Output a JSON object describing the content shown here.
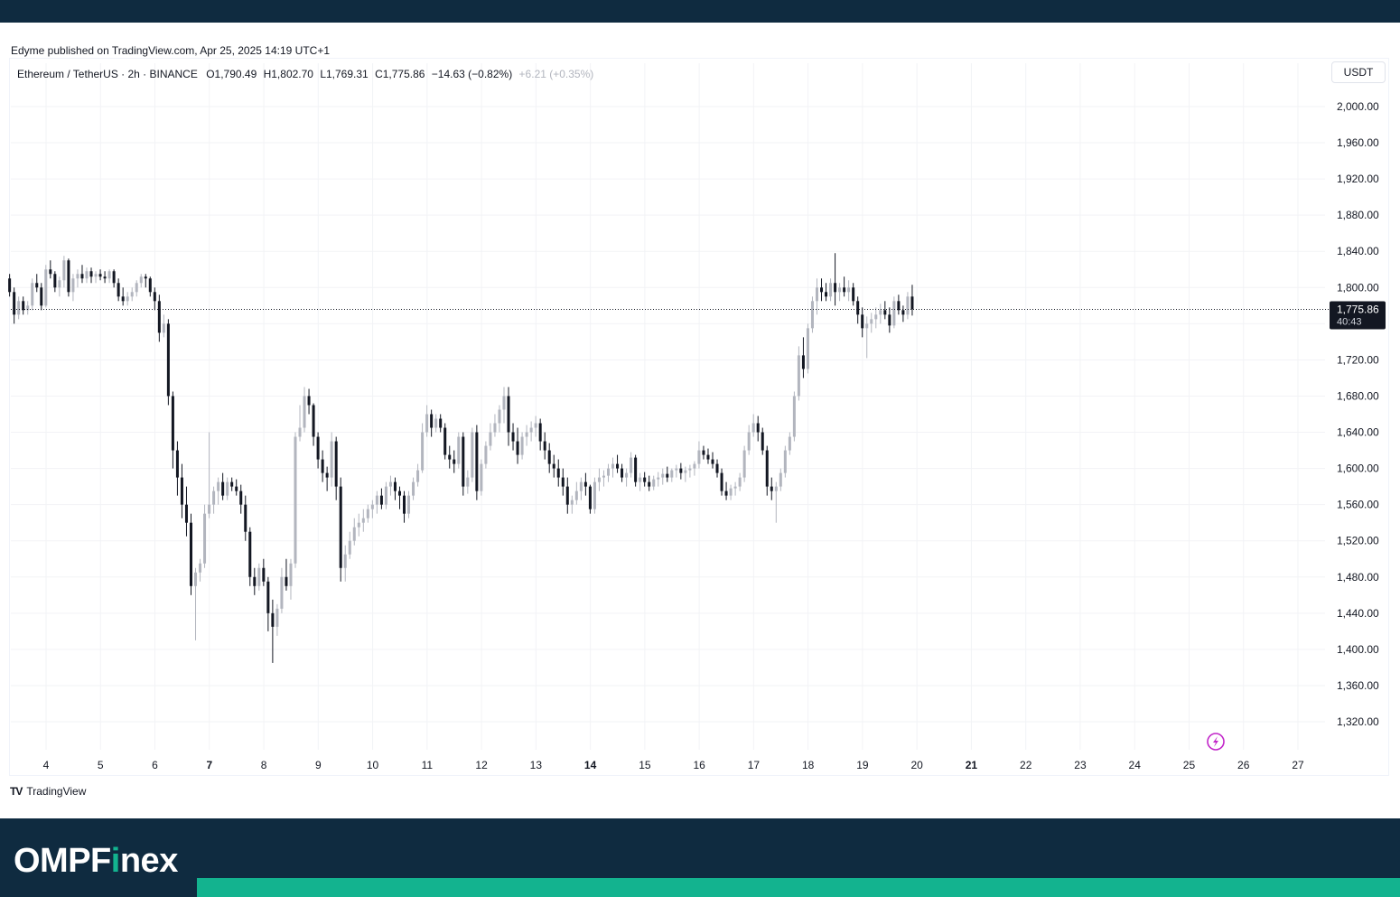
{
  "header": {
    "published": "Edyme published on TradingView.com, Apr 25, 2025 14:19 UTC+1"
  },
  "legend": {
    "symbol": "Ethereum / TetherUS · 2h · BINANCE",
    "open": "O1,790.49",
    "high": "H1,802.70",
    "low": "L1,769.31",
    "close": "C1,775.86",
    "change": "−14.63 (−0.82%)",
    "extra": "+6.21 (+0.35%)"
  },
  "currency": "USDT",
  "price_tag": {
    "price": "1,775.86",
    "countdown": "40:43"
  },
  "footer": {
    "tv_brand": "TradingView",
    "brand_main": "OMPF",
    "brand_dot": "i",
    "brand_end": "nex"
  },
  "colors": {
    "up": "#b2b5be",
    "down": "#131722",
    "grid": "#f2f3f6",
    "footer_bg": "#0f2b40",
    "accent": "#13b38f",
    "flash_icon": "#c226c9"
  },
  "icons": [
    "flash-icon",
    "tradingview-logo-icon"
  ],
  "chart_data": {
    "type": "candlestick",
    "interval": "2h",
    "ylim": [
      1300,
      2030
    ],
    "y_ticks": [
      2000,
      1960,
      1920,
      1880,
      1840,
      1800,
      1760,
      1720,
      1680,
      1640,
      1600,
      1560,
      1520,
      1480,
      1440,
      1400,
      1360,
      1320
    ],
    "y_tick_labels": [
      "2,000.00",
      "1,960.00",
      "1,920.00",
      "1,880.00",
      "1,840.00",
      "1,800.00",
      "",
      "1,720.00",
      "1,680.00",
      "1,640.00",
      "1,600.00",
      "1,560.00",
      "1,520.00",
      "1,480.00",
      "1,440.00",
      "1,400.00",
      "1,360.00",
      "1,320.00"
    ],
    "x_day_start": 3,
    "x_day_end": 28,
    "x_ticks": [
      {
        "day": 4,
        "label": "4",
        "bold": false
      },
      {
        "day": 5,
        "label": "5",
        "bold": false
      },
      {
        "day": 6,
        "label": "6",
        "bold": false
      },
      {
        "day": 7,
        "label": "7",
        "bold": true
      },
      {
        "day": 8,
        "label": "8",
        "bold": false
      },
      {
        "day": 9,
        "label": "9",
        "bold": false
      },
      {
        "day": 10,
        "label": "10",
        "bold": false
      },
      {
        "day": 11,
        "label": "11",
        "bold": false
      },
      {
        "day": 12,
        "label": "12",
        "bold": false
      },
      {
        "day": 13,
        "label": "13",
        "bold": false
      },
      {
        "day": 14,
        "label": "14",
        "bold": true
      },
      {
        "day": 15,
        "label": "15",
        "bold": false
      },
      {
        "day": 16,
        "label": "16",
        "bold": false
      },
      {
        "day": 17,
        "label": "17",
        "bold": false
      },
      {
        "day": 18,
        "label": "18",
        "bold": false
      },
      {
        "day": 19,
        "label": "19",
        "bold": false
      },
      {
        "day": 20,
        "label": "20",
        "bold": false
      },
      {
        "day": 21,
        "label": "21",
        "bold": true
      },
      {
        "day": 22,
        "label": "22",
        "bold": false
      },
      {
        "day": 23,
        "label": "23",
        "bold": false
      },
      {
        "day": 24,
        "label": "24",
        "bold": false
      },
      {
        "day": 25,
        "label": "25",
        "bold": false
      },
      {
        "day": 26,
        "label": "26",
        "bold": false
      },
      {
        "day": 27,
        "label": "27",
        "bold": false
      }
    ],
    "current_price": 1775.86,
    "first_candle_day": 3.33,
    "candles_per_day": 12,
    "candles": [
      [
        1810,
        1815,
        1790,
        1795
      ],
      [
        1795,
        1800,
        1760,
        1770
      ],
      [
        1770,
        1790,
        1765,
        1785
      ],
      [
        1785,
        1790,
        1770,
        1775
      ],
      [
        1775,
        1785,
        1770,
        1780
      ],
      [
        1780,
        1810,
        1775,
        1805
      ],
      [
        1805,
        1815,
        1795,
        1800
      ],
      [
        1800,
        1805,
        1775,
        1780
      ],
      [
        1780,
        1825,
        1778,
        1820
      ],
      [
        1820,
        1830,
        1810,
        1815
      ],
      [
        1815,
        1818,
        1795,
        1800
      ],
      [
        1800,
        1812,
        1790,
        1808
      ],
      [
        1808,
        1835,
        1800,
        1830
      ],
      [
        1830,
        1832,
        1790,
        1795
      ],
      [
        1795,
        1815,
        1785,
        1810
      ],
      [
        1810,
        1820,
        1800,
        1815
      ],
      [
        1815,
        1825,
        1805,
        1810
      ],
      [
        1810,
        1822,
        1805,
        1818
      ],
      [
        1818,
        1822,
        1805,
        1812
      ],
      [
        1812,
        1818,
        1805,
        1815
      ],
      [
        1815,
        1820,
        1808,
        1812
      ],
      [
        1812,
        1818,
        1805,
        1810
      ],
      [
        1810,
        1820,
        1805,
        1818
      ],
      [
        1818,
        1820,
        1800,
        1805
      ],
      [
        1805,
        1810,
        1785,
        1790
      ],
      [
        1790,
        1800,
        1780,
        1785
      ],
      [
        1785,
        1795,
        1780,
        1790
      ],
      [
        1790,
        1800,
        1785,
        1795
      ],
      [
        1795,
        1808,
        1790,
        1805
      ],
      [
        1805,
        1815,
        1800,
        1812
      ],
      [
        1812,
        1815,
        1800,
        1810
      ],
      [
        1810,
        1812,
        1790,
        1795
      ],
      [
        1795,
        1800,
        1775,
        1785
      ],
      [
        1785,
        1792,
        1740,
        1750
      ],
      [
        1750,
        1770,
        1745,
        1760
      ],
      [
        1760,
        1765,
        1670,
        1680
      ],
      [
        1680,
        1685,
        1600,
        1620
      ],
      [
        1620,
        1630,
        1570,
        1590
      ],
      [
        1590,
        1605,
        1545,
        1560
      ],
      [
        1560,
        1580,
        1525,
        1540
      ],
      [
        1540,
        1550,
        1460,
        1470
      ],
      [
        1470,
        1490,
        1410,
        1485
      ],
      [
        1485,
        1500,
        1475,
        1495
      ],
      [
        1495,
        1560,
        1490,
        1550
      ],
      [
        1550,
        1640,
        1545,
        1560
      ],
      [
        1560,
        1580,
        1550,
        1575
      ],
      [
        1575,
        1590,
        1560,
        1585
      ],
      [
        1585,
        1595,
        1565,
        1570
      ],
      [
        1570,
        1590,
        1565,
        1585
      ],
      [
        1585,
        1590,
        1575,
        1580
      ],
      [
        1580,
        1588,
        1570,
        1575
      ],
      [
        1575,
        1582,
        1550,
        1560
      ],
      [
        1560,
        1570,
        1520,
        1530
      ],
      [
        1530,
        1535,
        1470,
        1480
      ],
      [
        1480,
        1490,
        1460,
        1470
      ],
      [
        1470,
        1495,
        1465,
        1490
      ],
      [
        1490,
        1500,
        1470,
        1475
      ],
      [
        1475,
        1480,
        1420,
        1440
      ],
      [
        1440,
        1455,
        1385,
        1425
      ],
      [
        1425,
        1450,
        1415,
        1445
      ],
      [
        1445,
        1490,
        1440,
        1480
      ],
      [
        1480,
        1500,
        1465,
        1470
      ],
      [
        1470,
        1500,
        1455,
        1495
      ],
      [
        1495,
        1640,
        1490,
        1635
      ],
      [
        1635,
        1670,
        1630,
        1645
      ],
      [
        1645,
        1690,
        1640,
        1680
      ],
      [
        1680,
        1688,
        1660,
        1670
      ],
      [
        1670,
        1672,
        1625,
        1635
      ],
      [
        1635,
        1640,
        1600,
        1610
      ],
      [
        1610,
        1620,
        1585,
        1595
      ],
      [
        1595,
        1602,
        1575,
        1590
      ],
      [
        1590,
        1640,
        1580,
        1630
      ],
      [
        1630,
        1635,
        1565,
        1580
      ],
      [
        1580,
        1590,
        1475,
        1490
      ],
      [
        1490,
        1515,
        1475,
        1505
      ],
      [
        1505,
        1530,
        1500,
        1520
      ],
      [
        1520,
        1545,
        1515,
        1535
      ],
      [
        1535,
        1550,
        1525,
        1540
      ],
      [
        1540,
        1555,
        1530,
        1545
      ],
      [
        1545,
        1560,
        1540,
        1555
      ],
      [
        1555,
        1565,
        1545,
        1560
      ],
      [
        1560,
        1575,
        1550,
        1570
      ],
      [
        1570,
        1578,
        1555,
        1560
      ],
      [
        1560,
        1585,
        1555,
        1580
      ],
      [
        1580,
        1592,
        1570,
        1585
      ],
      [
        1585,
        1590,
        1565,
        1575
      ],
      [
        1575,
        1580,
        1555,
        1570
      ],
      [
        1570,
        1575,
        1540,
        1550
      ],
      [
        1550,
        1575,
        1545,
        1570
      ],
      [
        1570,
        1590,
        1565,
        1585
      ],
      [
        1585,
        1605,
        1580,
        1598
      ],
      [
        1598,
        1650,
        1595,
        1640
      ],
      [
        1640,
        1670,
        1635,
        1660
      ],
      [
        1660,
        1665,
        1635,
        1645
      ],
      [
        1645,
        1660,
        1640,
        1655
      ],
      [
        1655,
        1660,
        1640,
        1645
      ],
      [
        1645,
        1650,
        1610,
        1615
      ],
      [
        1615,
        1625,
        1600,
        1610
      ],
      [
        1610,
        1620,
        1595,
        1605
      ],
      [
        1605,
        1640,
        1600,
        1635
      ],
      [
        1635,
        1640,
        1570,
        1580
      ],
      [
        1580,
        1598,
        1572,
        1590
      ],
      [
        1590,
        1645,
        1585,
        1640
      ],
      [
        1640,
        1648,
        1565,
        1575
      ],
      [
        1575,
        1610,
        1570,
        1605
      ],
      [
        1605,
        1630,
        1600,
        1625
      ],
      [
        1625,
        1650,
        1620,
        1640
      ],
      [
        1640,
        1660,
        1635,
        1650
      ],
      [
        1650,
        1670,
        1640,
        1665
      ],
      [
        1665,
        1690,
        1650,
        1680
      ],
      [
        1680,
        1690,
        1625,
        1640
      ],
      [
        1640,
        1650,
        1620,
        1630
      ],
      [
        1630,
        1645,
        1605,
        1615
      ],
      [
        1615,
        1640,
        1610,
        1635
      ],
      [
        1635,
        1648,
        1625,
        1640
      ],
      [
        1640,
        1652,
        1630,
        1645
      ],
      [
        1645,
        1658,
        1635,
        1650
      ],
      [
        1650,
        1655,
        1620,
        1630
      ],
      [
        1630,
        1640,
        1610,
        1620
      ],
      [
        1620,
        1628,
        1595,
        1605
      ],
      [
        1605,
        1615,
        1590,
        1600
      ],
      [
        1600,
        1610,
        1580,
        1590
      ],
      [
        1590,
        1600,
        1570,
        1580
      ],
      [
        1580,
        1590,
        1550,
        1560
      ],
      [
        1560,
        1570,
        1550,
        1565
      ],
      [
        1565,
        1585,
        1560,
        1575
      ],
      [
        1575,
        1590,
        1565,
        1585
      ],
      [
        1585,
        1595,
        1570,
        1580
      ],
      [
        1580,
        1582,
        1550,
        1555
      ],
      [
        1555,
        1590,
        1550,
        1585
      ],
      [
        1585,
        1600,
        1575,
        1590
      ],
      [
        1590,
        1598,
        1580,
        1592
      ],
      [
        1592,
        1605,
        1585,
        1600
      ],
      [
        1600,
        1612,
        1590,
        1605
      ],
      [
        1605,
        1615,
        1595,
        1600
      ],
      [
        1600,
        1605,
        1585,
        1590
      ],
      [
        1590,
        1600,
        1580,
        1595
      ],
      [
        1595,
        1618,
        1590,
        1612
      ],
      [
        1612,
        1615,
        1580,
        1585
      ],
      [
        1585,
        1595,
        1575,
        1590
      ],
      [
        1590,
        1596,
        1580,
        1585
      ],
      [
        1585,
        1592,
        1575,
        1580
      ],
      [
        1580,
        1592,
        1576,
        1588
      ],
      [
        1588,
        1596,
        1580,
        1590
      ],
      [
        1590,
        1600,
        1582,
        1594
      ],
      [
        1594,
        1602,
        1585,
        1590
      ],
      [
        1590,
        1600,
        1585,
        1598
      ],
      [
        1598,
        1604,
        1590,
        1600
      ],
      [
        1600,
        1606,
        1588,
        1595
      ],
      [
        1595,
        1602,
        1585,
        1598
      ],
      [
        1598,
        1604,
        1590,
        1600
      ],
      [
        1600,
        1608,
        1592,
        1605
      ],
      [
        1605,
        1630,
        1600,
        1620
      ],
      [
        1620,
        1625,
        1610,
        1615
      ],
      [
        1615,
        1622,
        1605,
        1610
      ],
      [
        1610,
        1618,
        1600,
        1605
      ],
      [
        1605,
        1610,
        1590,
        1595
      ],
      [
        1595,
        1600,
        1570,
        1575
      ],
      [
        1575,
        1585,
        1565,
        1570
      ],
      [
        1570,
        1582,
        1565,
        1578
      ],
      [
        1578,
        1585,
        1570,
        1580
      ],
      [
        1580,
        1595,
        1575,
        1590
      ],
      [
        1590,
        1625,
        1585,
        1620
      ],
      [
        1620,
        1648,
        1615,
        1640
      ],
      [
        1640,
        1660,
        1635,
        1650
      ],
      [
        1650,
        1658,
        1630,
        1640
      ],
      [
        1640,
        1645,
        1615,
        1620
      ],
      [
        1620,
        1625,
        1570,
        1580
      ],
      [
        1580,
        1590,
        1565,
        1575
      ],
      [
        1575,
        1585,
        1540,
        1580
      ],
      [
        1580,
        1600,
        1575,
        1595
      ],
      [
        1595,
        1625,
        1590,
        1620
      ],
      [
        1620,
        1640,
        1615,
        1635
      ],
      [
        1635,
        1685,
        1630,
        1680
      ],
      [
        1680,
        1735,
        1675,
        1725
      ],
      [
        1725,
        1745,
        1700,
        1710
      ],
      [
        1710,
        1760,
        1705,
        1755
      ],
      [
        1755,
        1790,
        1750,
        1785
      ],
      [
        1785,
        1810,
        1770,
        1800
      ],
      [
        1800,
        1810,
        1785,
        1795
      ],
      [
        1795,
        1805,
        1785,
        1790
      ],
      [
        1790,
        1810,
        1785,
        1805
      ],
      [
        1805,
        1838,
        1780,
        1795
      ],
      [
        1795,
        1805,
        1785,
        1800
      ],
      [
        1800,
        1812,
        1790,
        1795
      ],
      [
        1795,
        1808,
        1785,
        1800
      ],
      [
        1800,
        1805,
        1780,
        1785
      ],
      [
        1785,
        1790,
        1760,
        1770
      ],
      [
        1770,
        1778,
        1745,
        1755
      ],
      [
        1755,
        1768,
        1722,
        1760
      ],
      [
        1760,
        1772,
        1750,
        1765
      ],
      [
        1765,
        1778,
        1755,
        1770
      ],
      [
        1770,
        1782,
        1760,
        1775
      ],
      [
        1775,
        1785,
        1765,
        1770
      ],
      [
        1770,
        1778,
        1750,
        1758
      ],
      [
        1758,
        1790,
        1755,
        1785
      ],
      [
        1785,
        1792,
        1770,
        1775
      ],
      [
        1775,
        1780,
        1762,
        1770
      ],
      [
        1770,
        1795,
        1765,
        1790
      ],
      [
        1790,
        1803,
        1769,
        1776
      ]
    ]
  }
}
